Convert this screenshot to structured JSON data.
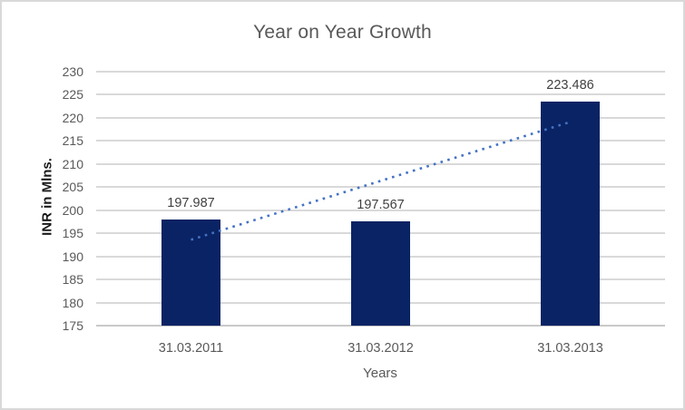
{
  "window": {
    "background": "#FFFFFF",
    "border_color": "#D9D9D9"
  },
  "chart_data": {
    "type": "bar",
    "title": "Year on Year Growth",
    "xlabel": "Years",
    "ylabel": "INR in Mlns.",
    "categories": [
      "31.03.2011",
      "31.03.2012",
      "31.03.2013"
    ],
    "values": [
      197.987,
      197.567,
      223.486
    ],
    "value_labels": [
      "197.987",
      "197.567",
      "223.486"
    ],
    "ylim": [
      175,
      230
    ],
    "ytick_step": 5,
    "yticks": [
      "175",
      "180",
      "185",
      "190",
      "195",
      "200",
      "205",
      "210",
      "215",
      "220",
      "225",
      "230"
    ],
    "grid": "horizontal-only",
    "legend": "none",
    "data_labels": "above-bars",
    "bar_color": "#0A2364",
    "trendline": {
      "type": "linear",
      "style": "dotted",
      "color": "#4472C4",
      "start_value": 193.6,
      "end_value": 219.1
    },
    "colors": {
      "title_text": "#595959",
      "axis_text": "#595959",
      "data_label_text": "#404040",
      "axis_title_text": "#1A1A1A",
      "gridline": "#D9D9D9",
      "axis_line": "#C9C9C9"
    }
  }
}
